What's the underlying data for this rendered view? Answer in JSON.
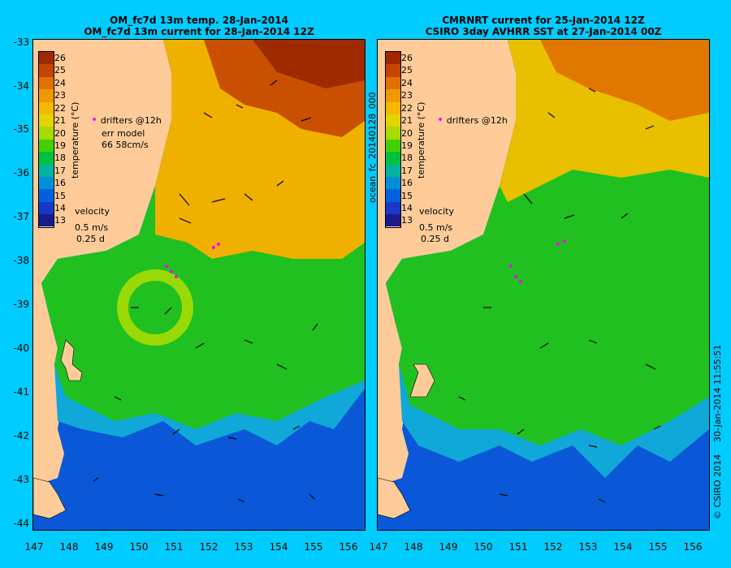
{
  "left_panel": {
    "title_line1": "OM_fc7d 13m temp. 28-Jan-2014",
    "title_line2": "OM_fc7d 13m current for 28-Jan-2014 12Z",
    "drifters_label": "drifters @12h",
    "err_model_label": "err model",
    "err_model_value": "66 58cm/s",
    "velocity_label": "velocity",
    "velocity_scale": "0.5 m/s",
    "velocity_time": "0.25 d",
    "colorbar_title": "temperature (°C)"
  },
  "right_panel": {
    "title_line1": "CMRNRT current for 25-Jan-2014 12Z",
    "title_line2": "CSIRO 3day AVHRR SST at 27-Jan-2014 00Z",
    "drifters_label": "drifters @12h",
    "velocity_label": "velocity",
    "velocity_scale": "0.5 m/s",
    "velocity_time": "0.25 d",
    "colorbar_title": "temperature (°C)"
  },
  "side_label": "ocean_fc_20140128_000",
  "footer_timestamp": "30-Jan-2014 11:55:51",
  "footer_copyright": "© CSIRO 2014",
  "y_ticks": [
    "-33",
    "-34",
    "-35",
    "-36",
    "-37",
    "-38",
    "-39",
    "-40",
    "-41",
    "-42",
    "-43",
    "-44"
  ],
  "x_ticks": [
    "147",
    "148",
    "149",
    "150",
    "151",
    "152",
    "153",
    "154",
    "155",
    "156"
  ],
  "colorbar_ticks": [
    "26",
    "25",
    "24",
    "23",
    "22",
    "21",
    "20",
    "19",
    "18",
    "17",
    "16",
    "15",
    "14",
    "13"
  ],
  "colorbar_colors": [
    "#a02800",
    "#c44400",
    "#e07000",
    "#f09800",
    "#f4b800",
    "#e4d400",
    "#a8dc00",
    "#44d000",
    "#00c040",
    "#00b4a0",
    "#0090d8",
    "#0060e0",
    "#1838c8",
    "#1a1a8c"
  ],
  "colors": {
    "background": "#00ccff",
    "land": "#ffcc99",
    "drifter": "#ff00ff"
  }
}
